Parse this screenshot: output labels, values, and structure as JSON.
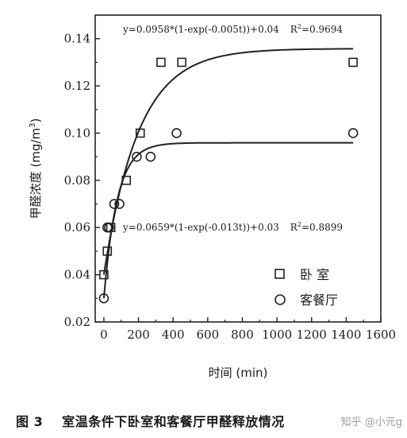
{
  "chart_data": {
    "type": "scatter",
    "xlabel": "时间 (min)",
    "ylabel": "甲醛浓度 (mg/m3)",
    "ylabel_main": "甲醛浓度 (mg/m",
    "ylabel_sup": "3",
    "ylabel_tail": ")",
    "xlim": [
      -50,
      1600
    ],
    "ylim": [
      0.02,
      0.15
    ],
    "x_ticks": [
      0,
      200,
      400,
      600,
      800,
      1000,
      1200,
      1400,
      1600
    ],
    "x_tick_labels": [
      "0",
      "200",
      "400",
      "600",
      "800",
      "1000",
      "1200",
      "1400",
      "1600"
    ],
    "y_ticks": [
      0.02,
      0.04,
      0.06,
      0.08,
      0.1,
      0.12,
      0.14
    ],
    "y_tick_labels": [
      "0.02",
      "0.04",
      "0.06",
      "0.08",
      "0.10",
      "0.12",
      "0.14"
    ],
    "grid": false,
    "legend_position": "bottom-right",
    "series": [
      {
        "name": "卧 室",
        "marker": "square",
        "points": [
          {
            "x": 0,
            "y": 0.04
          },
          {
            "x": 20,
            "y": 0.05
          },
          {
            "x": 40,
            "y": 0.06
          },
          {
            "x": 130,
            "y": 0.08
          },
          {
            "x": 210,
            "y": 0.1
          },
          {
            "x": 330,
            "y": 0.13
          },
          {
            "x": 450,
            "y": 0.13
          },
          {
            "x": 1440,
            "y": 0.13
          }
        ],
        "fit": {
          "A": 0.0958,
          "k": 0.005,
          "c": 0.04
        },
        "fit_label_main": "y=0.0958*(1-exp(-0.005t))+0.04",
        "fit_label_r": "R",
        "fit_label_r_sup": "2",
        "fit_label_r_val": "=0.9694"
      },
      {
        "name": "客餐厅",
        "marker": "circle",
        "points": [
          {
            "x": 0,
            "y": 0.03
          },
          {
            "x": 20,
            "y": 0.06
          },
          {
            "x": 30,
            "y": 0.06
          },
          {
            "x": 60,
            "y": 0.07
          },
          {
            "x": 90,
            "y": 0.07
          },
          {
            "x": 190,
            "y": 0.09
          },
          {
            "x": 270,
            "y": 0.09
          },
          {
            "x": 420,
            "y": 0.1
          },
          {
            "x": 1440,
            "y": 0.1
          }
        ],
        "fit": {
          "A": 0.0659,
          "k": 0.013,
          "c": 0.03
        },
        "fit_label_main": "y=0.0659*(1-exp(-0.013t))+0.03",
        "fit_label_r": "R",
        "fit_label_r_sup": "2",
        "fit_label_r_val": "=0.8899"
      }
    ]
  },
  "caption": {
    "figure_number": "图 3",
    "text": "室温条件下卧室和客餐厅甲醛释放情况"
  },
  "watermark": "知乎 @小元g"
}
